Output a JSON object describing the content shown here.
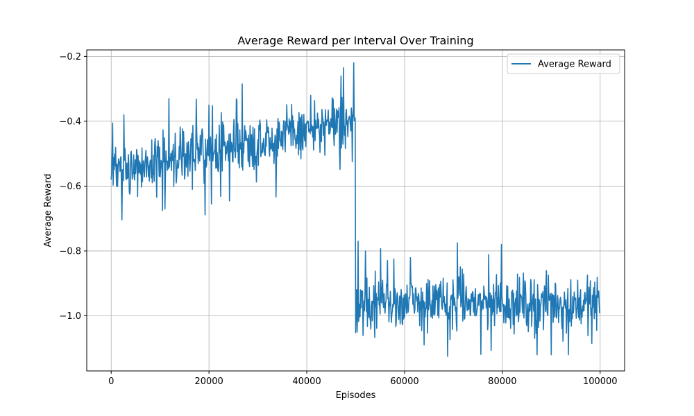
{
  "chart_data": {
    "type": "line",
    "title": "Average Reward per Interval Over Training",
    "xlabel": "Episodes",
    "ylabel": "Average Reward",
    "xlim": [
      -5000,
      105000
    ],
    "ylim": [
      -1.17,
      -0.18
    ],
    "xticks": [
      0,
      20000,
      40000,
      60000,
      80000,
      100000
    ],
    "xtick_labels": [
      "0",
      "20000",
      "40000",
      "60000",
      "80000",
      "100000"
    ],
    "yticks": [
      -1.0,
      -0.8,
      -0.6,
      -0.4,
      -0.2
    ],
    "ytick_labels": [
      "−1.0",
      "−0.8",
      "−0.6",
      "−0.4",
      "−0.2"
    ],
    "grid": true,
    "legend_position": "upper-right",
    "series": [
      {
        "name": "Average Reward",
        "color": "#1f77b4",
        "x_start": 0,
        "x_step": 100,
        "phases": [
          {
            "x_from": 0,
            "x_to": 10000,
            "mean_from": -0.55,
            "mean_to": -0.52
          },
          {
            "x_from": 10000,
            "x_to": 30000,
            "mean_from": -0.52,
            "mean_to": -0.46
          },
          {
            "x_from": 30000,
            "x_to": 49900,
            "mean_from": -0.46,
            "mean_to": -0.4
          },
          {
            "x_from": 50000,
            "x_to": 100000,
            "mean_from": -0.96,
            "mean_to": -0.96
          }
        ],
        "spread": 0.05,
        "key_points": [
          [
            0,
            -0.58
          ],
          [
            1100,
            -0.6
          ],
          [
            2600,
            -0.38
          ],
          [
            8000,
            -0.52
          ],
          [
            10500,
            -0.675
          ],
          [
            11000,
            -0.67
          ],
          [
            11800,
            -0.33
          ],
          [
            20500,
            -0.655
          ],
          [
            20000,
            -0.35
          ],
          [
            26800,
            -0.285
          ],
          [
            40800,
            -0.32
          ],
          [
            47000,
            -0.26
          ],
          [
            47500,
            -0.235
          ],
          [
            49300,
            -0.525
          ],
          [
            49600,
            -0.22
          ],
          [
            49900,
            -0.39
          ],
          [
            50300,
            -1.05
          ],
          [
            50500,
            -0.77
          ],
          [
            52000,
            -0.8
          ],
          [
            64000,
            -1.09
          ],
          [
            68800,
            -1.125
          ],
          [
            70800,
            -0.775
          ],
          [
            79800,
            -0.78
          ],
          [
            90000,
            -1.12
          ],
          [
            93500,
            -1.12
          ],
          [
            98300,
            -1.085
          ],
          [
            100000,
            -0.99
          ]
        ]
      }
    ]
  }
}
